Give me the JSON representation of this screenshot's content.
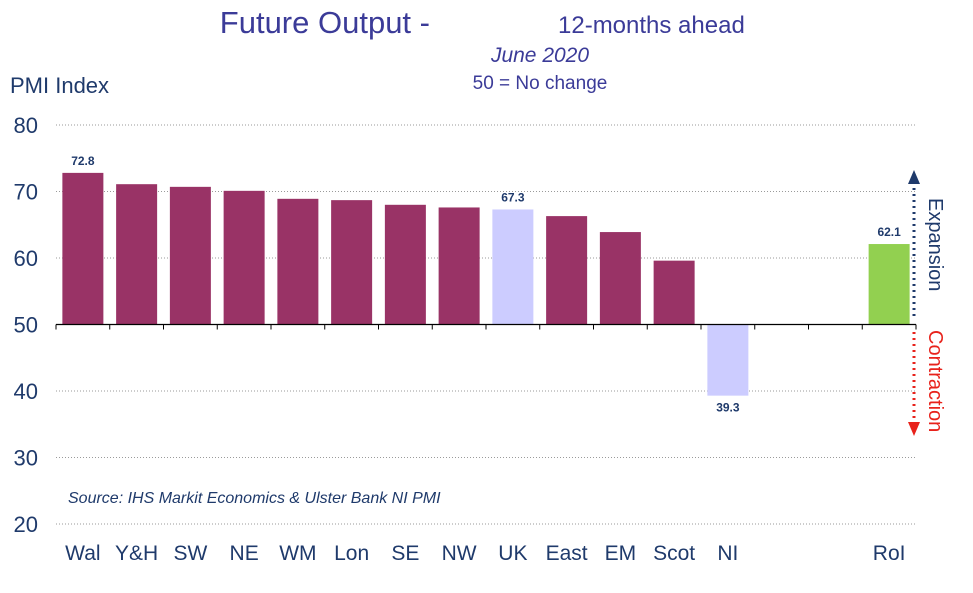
{
  "chart_data": {
    "type": "bar",
    "title": "Future Output -",
    "title_suffix": "12-months ahead",
    "subtitle": "June 2020",
    "note": "50 = No change",
    "ylabel": "PMI Index",
    "xlabel": "",
    "ylim": [
      20,
      80
    ],
    "yticks": [
      20,
      30,
      40,
      50,
      60,
      70,
      80
    ],
    "baseline": 50,
    "grid": true,
    "categories": [
      "Wal",
      "Y&H",
      "SW",
      "NE",
      "WM",
      "Lon",
      "SE",
      "NW",
      "UK",
      "East",
      "EM",
      "Scot",
      "NI",
      "",
      "",
      "RoI"
    ],
    "values": [
      72.8,
      71.1,
      70.7,
      70.1,
      68.9,
      68.7,
      68.0,
      67.6,
      67.3,
      66.3,
      63.9,
      59.6,
      39.3,
      null,
      null,
      62.1
    ],
    "data_labels": {
      "0": "72.8",
      "8": "67.3",
      "12": "39.3",
      "15": "62.1"
    },
    "colors": {
      "region": "#993366",
      "uk": "#ccccff",
      "ni": "#ccccff",
      "roi": "#92d050",
      "expansion_arrow": "#1f3a6b",
      "contraction_arrow": "#e8221b"
    },
    "annotations": {
      "expansion": "Expansion",
      "contraction": "Contraction",
      "source": "Source: IHS Markit Economics & Ulster Bank NI PMI"
    }
  }
}
